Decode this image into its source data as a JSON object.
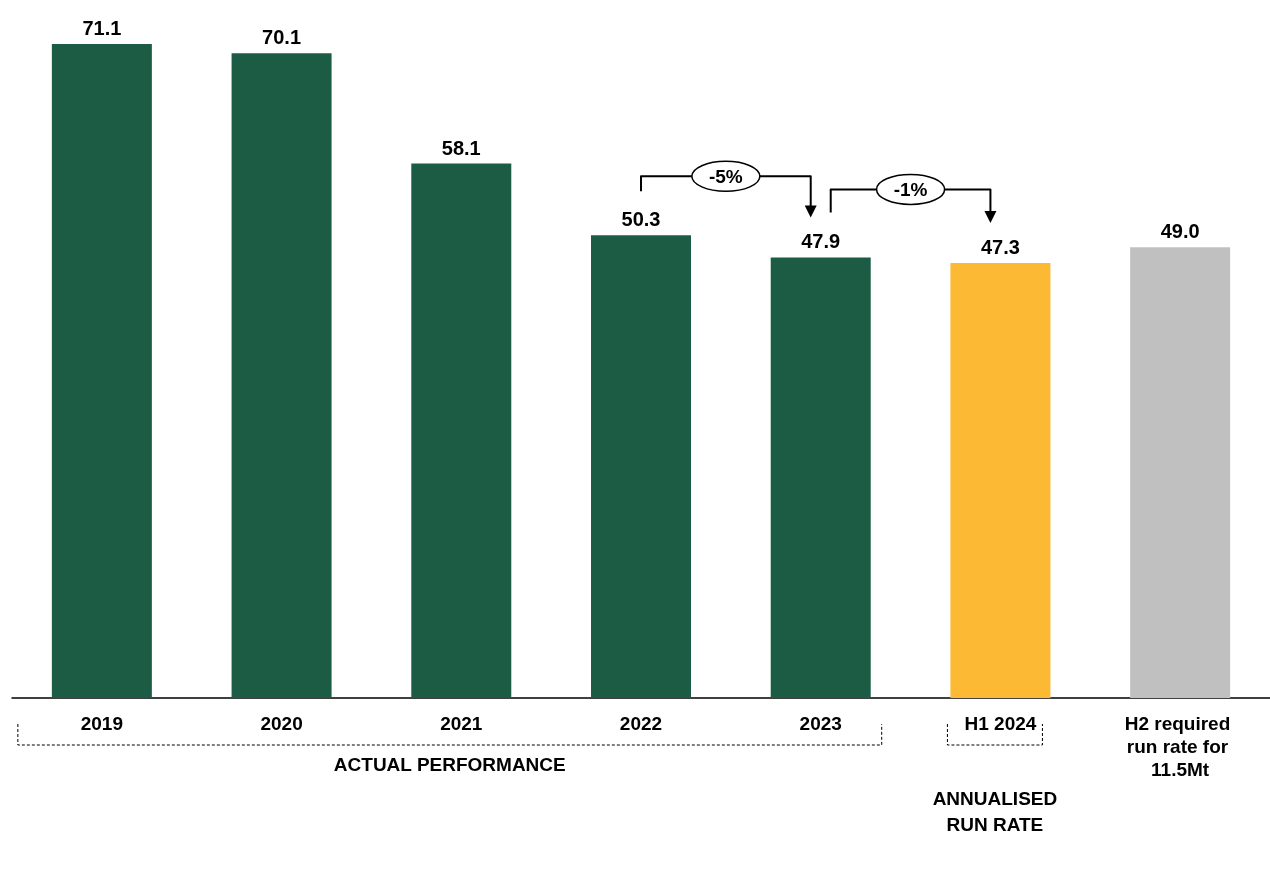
{
  "chart_data": {
    "type": "bar",
    "categories": [
      "2019",
      "2020",
      "2021",
      "2022",
      "2023",
      "H1 2024",
      "H2 required run rate for 11.5Mt"
    ],
    "values": [
      71.1,
      70.1,
      58.1,
      50.3,
      47.9,
      47.3,
      49.0
    ],
    "colors": [
      "#1c5c45",
      "#1c5c45",
      "#1c5c45",
      "#1c5c45",
      "#1c5c45",
      "#fbb934",
      "#c0c0c0"
    ],
    "value_labels": [
      "71.1",
      "70.1",
      "58.1",
      "50.3",
      "47.9",
      "47.3",
      "49.0"
    ],
    "tick_labels": "x",
    "annotations": [
      "-5%",
      "-1%",
      "ACTUAL PERFORMANCE",
      "ANNUALISED RUN RATE"
    ]
  }
}
